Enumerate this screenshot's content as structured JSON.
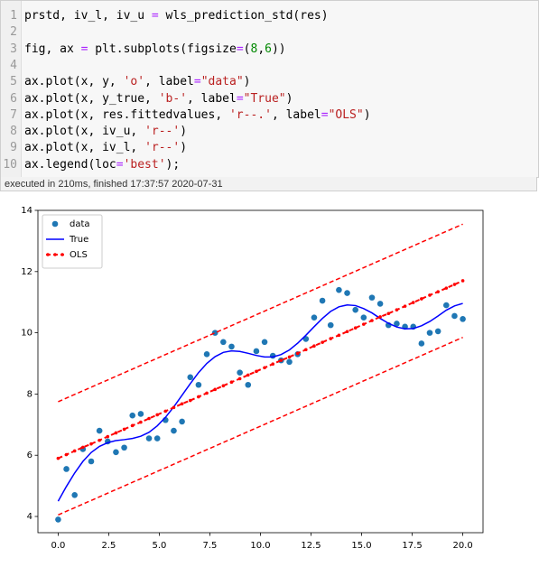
{
  "cell": {
    "lines": [
      {
        "number": 1,
        "code": "prstd, iv_l, iv_u = wls_prediction_std(res)"
      },
      {
        "number": 2
      },
      {
        "number": 3,
        "code": "fig, ax = plt.subplots(figsize=(8,6))"
      },
      {
        "number": 4
      },
      {
        "number": 5,
        "code": "ax.plot(x, y, 'o', label=\"data\")"
      },
      {
        "number": 6,
        "code": "ax.plot(x, y_true, 'b-', label=\"True\")"
      },
      {
        "number": 7,
        "code": "ax.plot(x, res.fittedvalues, 'r--.', label=\"OLS\")"
      },
      {
        "number": 8,
        "code": "ax.plot(x, iv_u, 'r--')"
      },
      {
        "number": 9,
        "code": "ax.plot(x, iv_l, 'r--')"
      },
      {
        "number": 10,
        "code": "ax.legend(loc='best');"
      }
    ],
    "status": "executed in 210ms, finished 17:37:57 2020-07-31"
  },
  "chart_data": {
    "type": "line",
    "x": [
      0,
      0.408,
      0.816,
      1.224,
      1.633,
      2.041,
      2.449,
      2.857,
      3.265,
      3.673,
      4.082,
      4.49,
      4.898,
      5.306,
      5.714,
      6.122,
      6.531,
      6.939,
      7.347,
      7.755,
      8.163,
      8.571,
      8.98,
      9.388,
      9.796,
      10.204,
      10.612,
      11.02,
      11.429,
      11.837,
      12.245,
      12.653,
      13.061,
      13.469,
      13.878,
      14.286,
      14.694,
      15.102,
      15.51,
      15.918,
      16.327,
      16.735,
      17.143,
      17.551,
      17.959,
      18.367,
      18.776,
      19.184,
      19.592,
      20
    ],
    "series": [
      {
        "name": "data",
        "color": "#1f77b4",
        "marker": "o",
        "linestyle": "none",
        "values": [
          3.9,
          5.55,
          4.7,
          6.2,
          5.8,
          6.8,
          6.45,
          6.1,
          6.25,
          7.3,
          7.35,
          6.55,
          6.55,
          7.15,
          6.8,
          7.1,
          8.55,
          8.3,
          9.3,
          10.0,
          9.7,
          9.55,
          8.7,
          8.3,
          9.4,
          9.7,
          9.25,
          9.1,
          9.05,
          9.3,
          9.8,
          10.5,
          11.05,
          10.25,
          11.4,
          11.3,
          10.75,
          10.5,
          11.15,
          10.95,
          10.25,
          10.3,
          10.2,
          10.2,
          9.65,
          10.0,
          10.05,
          10.9,
          10.55,
          10.45
        ]
      },
      {
        "name": "True",
        "color": "#0000ff",
        "linestyle": "solid",
        "values": [
          4.5,
          4.98,
          5.42,
          5.8,
          6.09,
          6.29,
          6.41,
          6.48,
          6.51,
          6.55,
          6.62,
          6.75,
          6.96,
          7.24,
          7.58,
          7.96,
          8.34,
          8.7,
          9.0,
          9.22,
          9.36,
          9.41,
          9.39,
          9.33,
          9.26,
          9.21,
          9.21,
          9.29,
          9.44,
          9.66,
          9.92,
          10.2,
          10.47,
          10.7,
          10.85,
          10.91,
          10.89,
          10.79,
          10.65,
          10.47,
          10.31,
          10.19,
          10.13,
          10.14,
          10.23,
          10.37,
          10.55,
          10.74,
          10.88,
          10.96
        ]
      },
      {
        "name": "OLS",
        "color": "#ff0000",
        "marker": ".",
        "linestyle": "dashed",
        "values": [
          5.9,
          6.02,
          6.14,
          6.26,
          6.37,
          6.49,
          6.61,
          6.73,
          6.85,
          6.97,
          7.08,
          7.2,
          7.32,
          7.44,
          7.56,
          7.68,
          7.79,
          7.91,
          8.03,
          8.15,
          8.27,
          8.39,
          8.5,
          8.62,
          8.74,
          8.86,
          8.98,
          9.1,
          9.21,
          9.33,
          9.45,
          9.57,
          9.69,
          9.81,
          9.92,
          10.04,
          10.16,
          10.28,
          10.4,
          10.52,
          10.63,
          10.75,
          10.87,
          10.99,
          11.11,
          11.23,
          11.34,
          11.46,
          11.58,
          11.7
        ]
      },
      {
        "color": "#ff0000",
        "linestyle": "dashed",
        "x": [
          0,
          20
        ],
        "values": [
          7.75,
          13.55
        ]
      },
      {
        "color": "#ff0000",
        "linestyle": "dashed",
        "x": [
          0,
          20
        ],
        "values": [
          4.05,
          9.85
        ]
      }
    ],
    "xlim": [
      -1,
      21
    ],
    "ylim": [
      3.47,
      14.0
    ],
    "xticks": [
      {
        "value": 0,
        "label": "0.0"
      },
      2.5,
      {
        "value": 5,
        "label": "5.0"
      },
      7.5,
      {
        "value": 10,
        "label": "10.0"
      },
      12.5,
      {
        "value": 15,
        "label": "15.0"
      },
      17.5,
      {
        "value": 20,
        "label": "20.0"
      }
    ],
    "yticks": [
      4,
      6,
      8,
      10,
      12,
      14
    ],
    "grid": false,
    "legend": "upper left"
  }
}
